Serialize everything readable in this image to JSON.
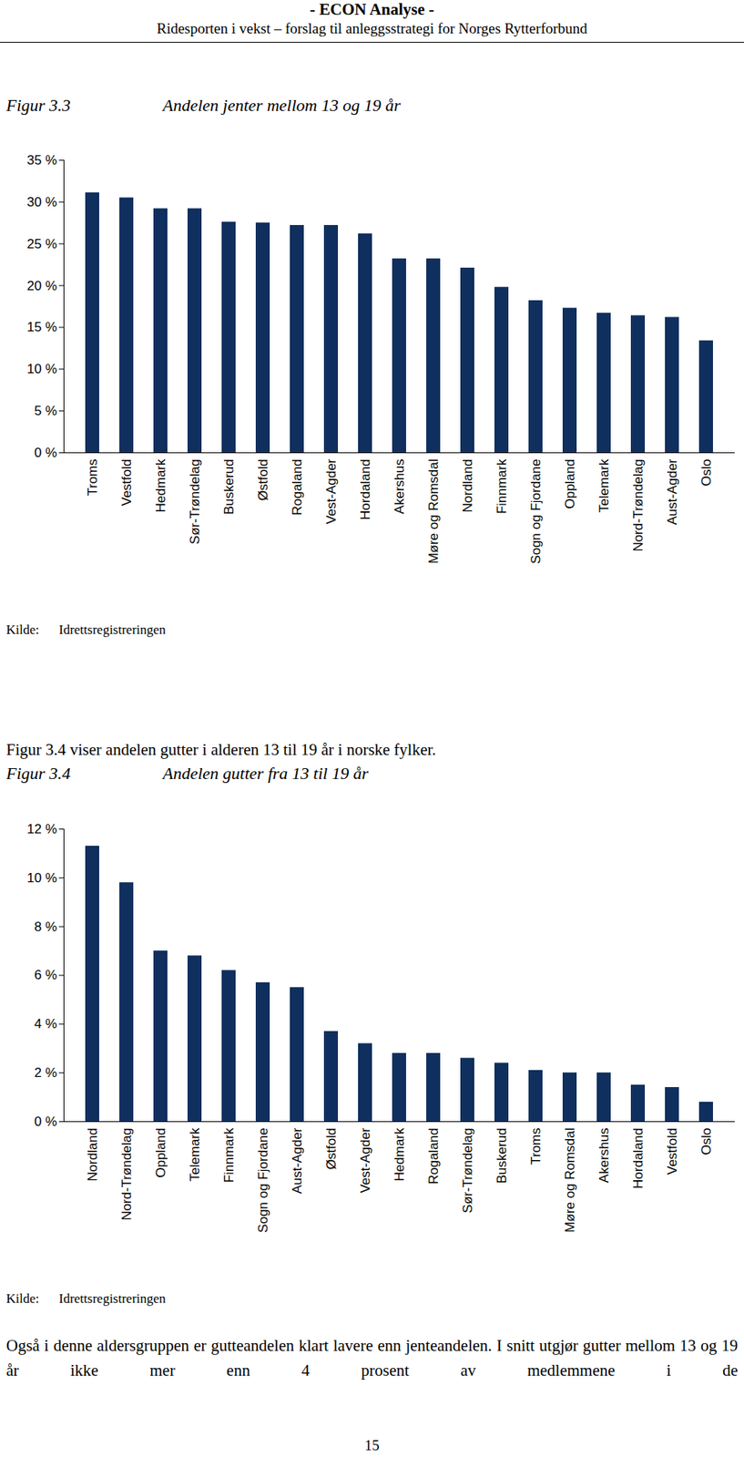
{
  "header": {
    "title": "- ECON Analyse -",
    "subtitle": "Ridesporten i vekst – forslag til anleggsstrategi for Norges Rytterforbund"
  },
  "chart_data": [
    {
      "type": "bar",
      "figure": "Figur 3.3",
      "title": "Andelen jenter mellom 13 og 19 år",
      "categories": [
        "Troms",
        "Vestfold",
        "Hedmark",
        "Sør-Trøndelag",
        "Buskerud",
        "Østfold",
        "Rogaland",
        "Vest-Agder",
        "Hordaland",
        "Akershus",
        "Møre og Romsdal",
        "Nordland",
        "Finnmark",
        "Sogn og Fjordane",
        "Oppland",
        "Telemark",
        "Nord-Trøndelag",
        "Aust-Agder",
        "Oslo"
      ],
      "values": [
        31.1,
        30.5,
        29.2,
        29.2,
        27.6,
        27.5,
        27.2,
        27.2,
        26.2,
        23.2,
        23.2,
        22.1,
        19.8,
        18.2,
        17.3,
        16.7,
        16.4,
        16.2,
        13.4
      ],
      "color": "#0f2f5e",
      "ylim": [
        0,
        35
      ],
      "yticks": [
        {
          "value": 0,
          "label": "0 %"
        },
        {
          "value": 5,
          "label": "5 %"
        },
        {
          "value": 10,
          "label": "10 %"
        },
        {
          "value": 15,
          "label": "15 %"
        },
        {
          "value": 20,
          "label": "20 %"
        },
        {
          "value": 25,
          "label": "25 %"
        },
        {
          "value": 30,
          "label": "30 %"
        },
        {
          "value": 35,
          "label": "35 %"
        }
      ],
      "grid": false,
      "source": {
        "label": "Kilde:",
        "text": "Idrettsregistreringen"
      }
    },
    {
      "type": "bar",
      "figure": "Figur 3.4",
      "title": "Andelen gutter fra 13 til 19 år",
      "categories": [
        "Nordland",
        "Nord-Trøndelag",
        "Oppland",
        "Telemark",
        "Finnmark",
        "Sogn og Fjordane",
        "Aust-Agder",
        "Østfold",
        "Vest-Agder",
        "Hedmark",
        "Rogaland",
        "Sør-Trøndelag",
        "Buskerud",
        "Troms",
        "Møre og Romsdal",
        "Akershus",
        "Hordaland",
        "Vestfold",
        "Oslo"
      ],
      "values": [
        11.3,
        9.8,
        7.0,
        6.8,
        6.2,
        5.7,
        5.5,
        3.7,
        3.2,
        2.8,
        2.8,
        2.6,
        2.4,
        2.1,
        2.0,
        2.0,
        1.5,
        1.4,
        0.8
      ],
      "color": "#0f2f5e",
      "ylim": [
        0,
        12
      ],
      "yticks": [
        {
          "value": 0,
          "label": "0 %"
        },
        {
          "value": 2,
          "label": "2 %"
        },
        {
          "value": 4,
          "label": "4 %"
        },
        {
          "value": 6,
          "label": "6 %"
        },
        {
          "value": 8,
          "label": "8 %"
        },
        {
          "value": 10,
          "label": "10 %"
        },
        {
          "value": 12,
          "label": "12 %"
        }
      ],
      "grid": false,
      "source": {
        "label": "Kilde:",
        "text": "Idrettsregistreringen"
      }
    }
  ],
  "paragraphs": [
    "Figur 3.4 viser andelen gutter i alderen 13 til 19 år i norske fylker.",
    "Også i denne aldersgruppen er gutteandelen klart lavere enn jenteandelen. I snitt utgjør gutter mellom 13 og 19 år ikke mer enn 4 prosent av medlemmene i de"
  ],
  "page_number": 15
}
